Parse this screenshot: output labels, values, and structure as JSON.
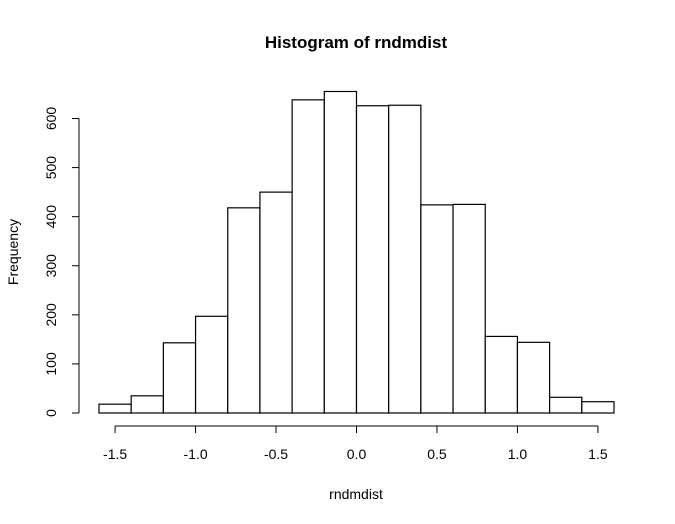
{
  "chart_data": {
    "type": "bar",
    "title": "Histogram of rndmdist",
    "xlabel": "rndmdist",
    "ylabel": "Frequency",
    "bin_edges": [
      -1.6,
      -1.4,
      -1.2,
      -1.0,
      -0.8,
      -0.6,
      -0.4,
      -0.2,
      0.0,
      0.2,
      0.4,
      0.6,
      0.8,
      1.0,
      1.2,
      1.4,
      1.6
    ],
    "values": [
      18,
      35,
      143,
      197,
      418,
      450,
      638,
      655,
      626,
      627,
      424,
      425,
      156,
      144,
      32,
      23
    ],
    "xlim": [
      -1.6,
      1.6
    ],
    "ylim": [
      0,
      655
    ],
    "x_ticks": [
      -1.5,
      -1.0,
      -0.5,
      0.0,
      0.5,
      1.0,
      1.5
    ],
    "x_tick_labels": [
      "-1.5",
      "-1.0",
      "-0.5",
      "0.0",
      "0.5",
      "1.0",
      "1.5"
    ],
    "y_ticks": [
      0,
      100,
      200,
      300,
      400,
      500,
      600
    ],
    "y_tick_labels": [
      "0",
      "100",
      "200",
      "300",
      "400",
      "500",
      "600"
    ],
    "grid": false,
    "legend": "none"
  }
}
